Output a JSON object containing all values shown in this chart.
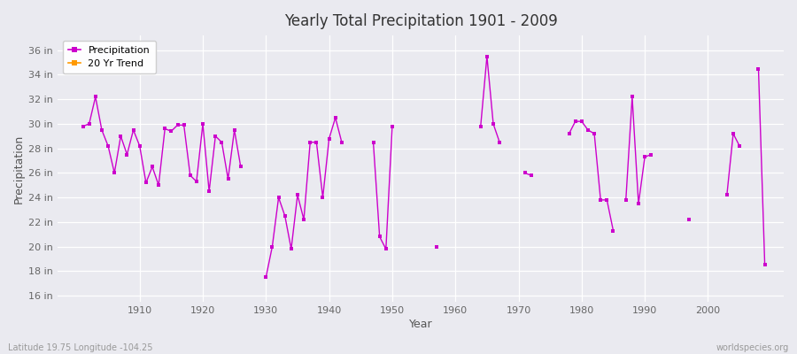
{
  "title": "Yearly Total Precipitation 1901 - 2009",
  "xlabel": "Year",
  "ylabel": "Precipitation",
  "bg_color": "#eaeaf0",
  "line_color": "#cc00cc",
  "trend_color": "#ff9900",
  "ylim_min": 15.5,
  "ylim_max": 37.2,
  "xlim_min": 1897,
  "xlim_max": 2012,
  "ytick_values": [
    16,
    18,
    20,
    22,
    24,
    26,
    28,
    30,
    32,
    34,
    36
  ],
  "ytick_labels": [
    "16 in",
    "18 in",
    "20 in",
    "22 in",
    "24 in",
    "26 in",
    "28 in",
    "30 in",
    "32 in",
    "34 in",
    "36 in"
  ],
  "xtick_values": [
    1910,
    1920,
    1930,
    1940,
    1950,
    1960,
    1970,
    1980,
    1990,
    2000
  ],
  "footer_left": "Latitude 19.75 Longitude -104.25",
  "footer_right": "worldspecies.org",
  "data": {
    "1901": 29.8,
    "1902": 30.0,
    "1903": 32.2,
    "1904": 29.5,
    "1905": 28.2,
    "1906": 26.0,
    "1907": 29.0,
    "1908": 27.5,
    "1909": 29.5,
    "1910": 28.2,
    "1911": 25.2,
    "1912": 26.5,
    "1913": 25.0,
    "1914": 29.6,
    "1915": 29.4,
    "1916": 29.9,
    "1917": 29.9,
    "1918": 25.8,
    "1919": 25.3,
    "1920": 30.0,
    "1921": 24.5,
    "1922": 29.0,
    "1923": 28.5,
    "1924": 25.5,
    "1925": 29.5,
    "1926": 26.5,
    "1930": 17.5,
    "1931": 20.0,
    "1932": 24.0,
    "1933": 22.5,
    "1934": 19.8,
    "1935": 24.2,
    "1936": 22.2,
    "1937": 28.5,
    "1938": 28.5,
    "1939": 24.0,
    "1940": 28.8,
    "1941": 30.5,
    "1942": 28.5,
    "1947": 28.5,
    "1948": 20.8,
    "1949": 19.8,
    "1950": 29.8,
    "1957": 20.0,
    "1964": 29.8,
    "1965": 35.5,
    "1966": 30.0,
    "1967": 28.5,
    "1971": 26.0,
    "1972": 25.8,
    "1978": 29.2,
    "1979": 30.2,
    "1980": 30.2,
    "1981": 29.5,
    "1982": 29.2,
    "1983": 23.8,
    "1984": 23.8,
    "1985": 21.3,
    "1987": 23.8,
    "1988": 32.2,
    "1989": 23.5,
    "1990": 27.3,
    "1991": 27.5,
    "1997": 22.2,
    "2003": 24.2,
    "2004": 29.2,
    "2005": 28.2,
    "2008": 34.5,
    "2009": 18.5
  }
}
